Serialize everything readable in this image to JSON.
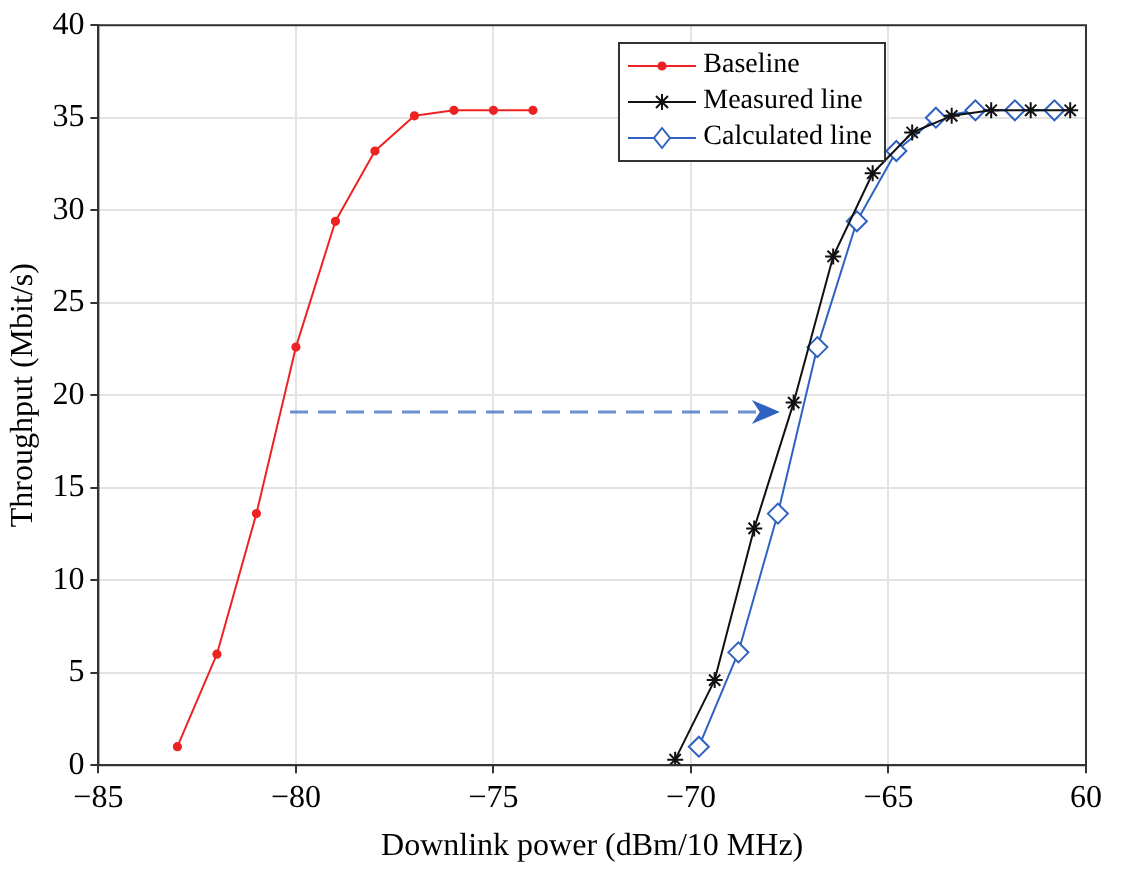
{
  "chart_data": {
    "type": "line",
    "xlabel": "Downlink power (dBm/10 MHz)",
    "ylabel": "Throughput (Mbit/s)",
    "xlim": [
      -85,
      -60
    ],
    "xticks": [
      {
        "value": -85,
        "label": "−85"
      },
      {
        "value": -80,
        "label": "−80"
      },
      {
        "value": -75,
        "label": "−75"
      },
      {
        "value": -70,
        "label": "−70"
      },
      {
        "value": -65,
        "label": "−65"
      },
      {
        "value": -60,
        "label": "60"
      }
    ],
    "ylim": [
      0,
      40
    ],
    "yticks": [
      0,
      5,
      10,
      15,
      20,
      25,
      30,
      35,
      40
    ],
    "grid": true,
    "legend": "top right",
    "line_style": "solid",
    "series": [
      {
        "name": "Baseline",
        "color": "#ee2222",
        "marker": "circle",
        "x": [
          -83,
          -82,
          -81,
          -80,
          -79,
          -78,
          -77,
          -76,
          -75,
          -74
        ],
        "values": [
          1.0,
          6.0,
          13.6,
          22.6,
          29.4,
          33.2,
          35.1,
          35.4,
          35.4,
          35.4
        ]
      },
      {
        "name": "Measured line",
        "color": "#111111",
        "marker": "cross",
        "x": [
          -70.4,
          -69.4,
          -68.4,
          -67.4,
          -66.4,
          -65.4,
          -64.4,
          -63.4,
          -62.4,
          -61.4,
          -60.4
        ],
        "values": [
          0.3,
          4.6,
          12.8,
          19.6,
          27.5,
          32.0,
          34.2,
          35.1,
          35.4,
          35.4,
          35.4
        ]
      },
      {
        "name": "Calculated line",
        "color": "#2f62c0",
        "marker": "diamond",
        "x": [
          -69.8,
          -68.8,
          -67.8,
          -66.8,
          -65.8,
          -64.8,
          -63.8,
          -62.8,
          -61.8,
          -60.8
        ],
        "values": [
          1.0,
          6.1,
          13.6,
          22.6,
          29.4,
          33.2,
          35.0,
          35.4,
          35.4,
          35.4
        ]
      }
    ]
  }
}
